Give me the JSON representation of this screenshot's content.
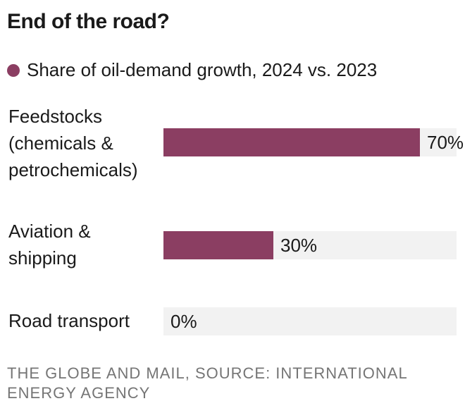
{
  "title": "End of the road?",
  "legend": {
    "label": "Share of oil-demand growth, 2024 vs. 2023",
    "color": "#8b3e62"
  },
  "footer": "THE GLOBE AND MAIL, SOURCE: INTERNATIONAL ENERGY AGENCY",
  "colors": {
    "bar": "#8b3e62",
    "track": "#f2f2f2"
  },
  "chart_data": {
    "type": "bar",
    "orientation": "horizontal",
    "title": "End of the road?",
    "categories": [
      "Feedstocks (chemicals & petrochemicals)",
      "Aviation & shipping",
      "Road transport"
    ],
    "category_lines": [
      [
        "Feedstocks",
        "(chemicals &",
        "petrochemicals)"
      ],
      [
        "Aviation &",
        "shipping"
      ],
      [
        "Road transport"
      ]
    ],
    "series": [
      {
        "name": "Share of oil-demand growth, 2024 vs. 2023",
        "values": [
          70,
          30,
          0
        ]
      }
    ],
    "value_labels": [
      "70%",
      "30%",
      "0%"
    ],
    "xlim": [
      0,
      80
    ],
    "grid": false,
    "legend_position": "top-left"
  }
}
